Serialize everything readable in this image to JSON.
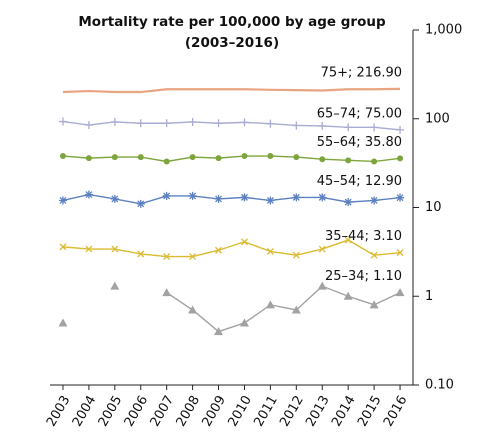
{
  "chart_data": {
    "type": "line",
    "title": "Mortality rate per 100,000 by age group",
    "subtitle": "(2003–2016)",
    "categories": [
      "2003",
      "2004",
      "2005",
      "2006",
      "2007",
      "2008",
      "2009",
      "2010",
      "2011",
      "2012",
      "2013",
      "2014",
      "2015",
      "2016"
    ],
    "log_scale": true,
    "ylim": [
      0.1,
      1000
    ],
    "yticks": [
      {
        "value": 0.1,
        "label": "0.10"
      },
      1,
      10,
      100,
      {
        "value": 1000,
        "label": "1,000"
      }
    ],
    "y_axis_side": "right",
    "grid": false,
    "series": [
      {
        "label": "75+; 216.90",
        "color": "#e9a582",
        "marker": "none",
        "values": [
          200,
          205,
          200,
          200,
          215,
          215,
          215,
          215,
          212,
          210,
          208,
          215,
          215,
          216.9
        ]
      },
      {
        "label": "65–74; 75.00",
        "color": "#a9acd2",
        "marker": "plus",
        "values": [
          93,
          85,
          92,
          89,
          89,
          92,
          89,
          91,
          88,
          84,
          83,
          80,
          80,
          75
        ]
      },
      {
        "label": "55–64; 35.80",
        "color": "#7ea53c",
        "marker": "circle",
        "values": [
          38,
          36,
          37,
          37,
          33,
          37,
          36,
          38,
          38,
          37,
          35,
          34,
          33,
          35.8
        ]
      },
      {
        "label": "45–54; 12.90",
        "color": "#5c80c0",
        "marker": "star",
        "values": [
          12,
          14,
          12.5,
          11,
          13.5,
          13.5,
          12.5,
          13,
          12,
          13,
          13,
          11.5,
          12,
          12.9
        ]
      },
      {
        "label": "35–44; 3.10",
        "color": "#dbbb30",
        "marker": "cross",
        "values": [
          3.6,
          3.4,
          3.4,
          3.0,
          2.8,
          2.8,
          3.3,
          4.1,
          3.2,
          2.9,
          3.4,
          4.3,
          2.9,
          3.1
        ]
      },
      {
        "label": "25–34; 1.10",
        "color": "#a2a2a2",
        "marker": "triangle",
        "values": [
          0.5,
          null,
          1.3,
          null,
          1.1,
          0.7,
          0.4,
          0.5,
          0.8,
          0.7,
          1.3,
          1.0,
          0.8,
          1.1
        ]
      }
    ]
  }
}
